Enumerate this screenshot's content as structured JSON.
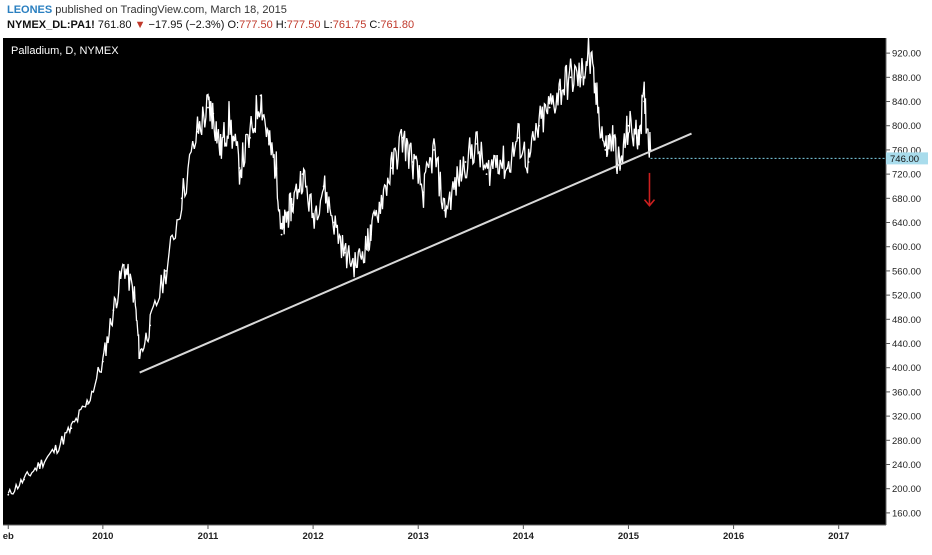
{
  "header": {
    "author": "LEONES",
    "published": "published on TradingView.com, March 18, 2015",
    "symbol": "NYMEX_DL:PA1!",
    "last": "761.80",
    "change": "−17.95 (−2.3%)",
    "o_label": "O:",
    "o": "777.50",
    "h_label": "H:",
    "h": "777.50",
    "l_label": "L:",
    "l": "761.75",
    "c_label": "C:",
    "c": "761.80"
  },
  "colors": {
    "background": "#000000",
    "price": "#ffffff",
    "trendline": "#d8d8d8",
    "arrow": "#cc1f1f",
    "level": "#7fd1e6",
    "author": "#2a7fc0",
    "down": "#c0392b"
  },
  "chart_data": {
    "type": "line",
    "title": "Palladium, D, NYMEX",
    "y_ticks": [
      "920.00",
      "880.00",
      "840.00",
      "800.00",
      "760.00",
      "720.00",
      "680.00",
      "640.00",
      "600.00",
      "560.00",
      "520.00",
      "480.00",
      "440.00",
      "400.00",
      "360.00",
      "320.00",
      "280.00",
      "240.00",
      "200.00",
      "160.00"
    ],
    "y_tick_values": [
      920,
      880,
      840,
      800,
      760,
      720,
      680,
      640,
      600,
      560,
      520,
      480,
      440,
      400,
      360,
      320,
      280,
      240,
      200,
      160
    ],
    "x_labels": [
      "eb",
      "2010",
      "2011",
      "2012",
      "2013",
      "2014",
      "2015",
      "2016",
      "2017"
    ],
    "x_label_years": [
      2009.1,
      2010,
      2011,
      2012,
      2013,
      2014,
      2015,
      2016,
      2017
    ],
    "ylim": [
      140,
      945
    ],
    "xlim": [
      2009.05,
      2017.45
    ],
    "price_level": {
      "value": 746,
      "label": "746.00"
    },
    "trendline": {
      "start": [
        2010.35,
        392
      ],
      "end": [
        2015.6,
        787
      ]
    },
    "series": [
      {
        "x": [
          2009.1,
          2009.25,
          2009.4,
          2009.55,
          2009.7,
          2009.85,
          2010.0,
          2010.1,
          2010.2,
          2010.3,
          2010.35,
          2010.45,
          2010.6,
          2010.75,
          2010.9,
          2011.0,
          2011.05,
          2011.12,
          2011.2,
          2011.3,
          2011.4,
          2011.5,
          2011.58,
          2011.65,
          2011.7,
          2011.75,
          2011.8,
          2011.9,
          2012.0,
          2012.1,
          2012.2,
          2012.3,
          2012.4,
          2012.5,
          2012.55,
          2012.65,
          2012.75,
          2012.85,
          2012.95,
          2013.05,
          2013.15,
          2013.25,
          2013.35,
          2013.45,
          2013.55,
          2013.65,
          2013.75,
          2013.85,
          2013.95,
          2014.05,
          2014.15,
          2014.25,
          2014.35,
          2014.45,
          2014.55,
          2014.62,
          2014.7,
          2014.78,
          2014.85,
          2014.92,
          2015.0,
          2015.08,
          2015.15,
          2015.21
        ],
        "y": [
          190,
          215,
          240,
          265,
          300,
          340,
          410,
          495,
          570,
          520,
          420,
          470,
          560,
          680,
          790,
          830,
          820,
          760,
          810,
          730,
          780,
          850,
          770,
          730,
          620,
          650,
          670,
          720,
          650,
          700,
          640,
          590,
          570,
          600,
          620,
          680,
          730,
          780,
          740,
          690,
          760,
          660,
          700,
          740,
          770,
          720,
          750,
          730,
          780,
          740,
          800,
          830,
          860,
          880,
          880,
          920,
          840,
          760,
          780,
          730,
          800,
          780,
          840,
          760
        ]
      }
    ]
  }
}
